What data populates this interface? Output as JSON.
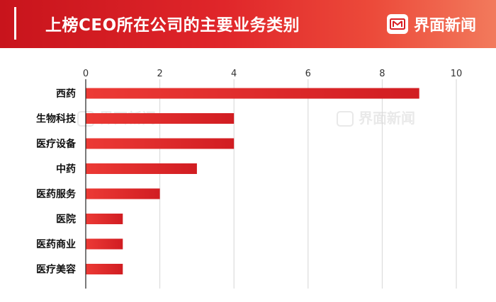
{
  "header": {
    "title": "上榜CEO所在公司的主要业务类别",
    "brand_name": "界面新闻",
    "brand_icon": "jiemian-logo-icon"
  },
  "watermark": {
    "text": "界面新闻"
  },
  "colors": {
    "bar": "#e0262a",
    "header": "#d81e24",
    "grid": "#d6d6d6"
  },
  "chart_data": {
    "type": "bar",
    "orientation": "horizontal",
    "title": "上榜CEO所在公司的主要业务类别",
    "categories": [
      "西药",
      "生物科技",
      "医疗设备",
      "中药",
      "医药服务",
      "医院",
      "医药商业",
      "医疗美容"
    ],
    "values": [
      9,
      4,
      4,
      3,
      2,
      1,
      1,
      1
    ],
    "xlim": [
      0,
      10
    ],
    "xticks": [
      0,
      2,
      4,
      6,
      8,
      10
    ],
    "xlabel": "",
    "ylabel": "",
    "grid": true,
    "legend": "none"
  }
}
